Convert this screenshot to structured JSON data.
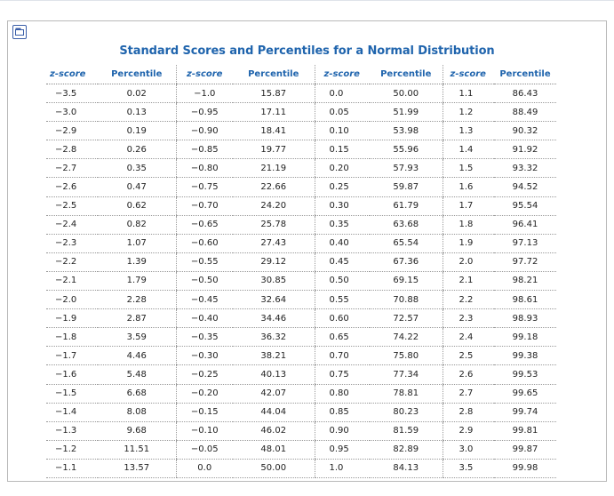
{
  "title": "Standard Scores and Percentiles for a Normal Distribution",
  "expand_icon": "expand-icon",
  "colors": {
    "heading": "#1f64ad",
    "text": "#222222",
    "border": "#b9b9b9"
  },
  "columns": [
    {
      "label": "z-score"
    },
    {
      "label": "Percentile"
    },
    {
      "label": "z-score"
    },
    {
      "label": "Percentile"
    },
    {
      "label": "z-score"
    },
    {
      "label": "Percentile"
    },
    {
      "label": "z-score"
    },
    {
      "label": "Percentile"
    }
  ],
  "rows": [
    [
      "−3.5",
      "0.02",
      "−1.0",
      "15.87",
      "0.0",
      "50.00",
      "1.1",
      "86.43"
    ],
    [
      "−3.0",
      "0.13",
      "−0.95",
      "17.11",
      "0.05",
      "51.99",
      "1.2",
      "88.49"
    ],
    [
      "−2.9",
      "0.19",
      "−0.90",
      "18.41",
      "0.10",
      "53.98",
      "1.3",
      "90.32"
    ],
    [
      "−2.8",
      "0.26",
      "−0.85",
      "19.77",
      "0.15",
      "55.96",
      "1.4",
      "91.92"
    ],
    [
      "−2.7",
      "0.35",
      "−0.80",
      "21.19",
      "0.20",
      "57.93",
      "1.5",
      "93.32"
    ],
    [
      "−2.6",
      "0.47",
      "−0.75",
      "22.66",
      "0.25",
      "59.87",
      "1.6",
      "94.52"
    ],
    [
      "−2.5",
      "0.62",
      "−0.70",
      "24.20",
      "0.30",
      "61.79",
      "1.7",
      "95.54"
    ],
    [
      "−2.4",
      "0.82",
      "−0.65",
      "25.78",
      "0.35",
      "63.68",
      "1.8",
      "96.41"
    ],
    [
      "−2.3",
      "1.07",
      "−0.60",
      "27.43",
      "0.40",
      "65.54",
      "1.9",
      "97.13"
    ],
    [
      "−2.2",
      "1.39",
      "−0.55",
      "29.12",
      "0.45",
      "67.36",
      "2.0",
      "97.72"
    ],
    [
      "−2.1",
      "1.79",
      "−0.50",
      "30.85",
      "0.50",
      "69.15",
      "2.1",
      "98.21"
    ],
    [
      "−2.0",
      "2.28",
      "−0.45",
      "32.64",
      "0.55",
      "70.88",
      "2.2",
      "98.61"
    ],
    [
      "−1.9",
      "2.87",
      "−0.40",
      "34.46",
      "0.60",
      "72.57",
      "2.3",
      "98.93"
    ],
    [
      "−1.8",
      "3.59",
      "−0.35",
      "36.32",
      "0.65",
      "74.22",
      "2.4",
      "99.18"
    ],
    [
      "−1.7",
      "4.46",
      "−0.30",
      "38.21",
      "0.70",
      "75.80",
      "2.5",
      "99.38"
    ],
    [
      "−1.6",
      "5.48",
      "−0.25",
      "40.13",
      "0.75",
      "77.34",
      "2.6",
      "99.53"
    ],
    [
      "−1.5",
      "6.68",
      "−0.20",
      "42.07",
      "0.80",
      "78.81",
      "2.7",
      "99.65"
    ],
    [
      "−1.4",
      "8.08",
      "−0.15",
      "44.04",
      "0.85",
      "80.23",
      "2.8",
      "99.74"
    ],
    [
      "−1.3",
      "9.68",
      "−0.10",
      "46.02",
      "0.90",
      "81.59",
      "2.9",
      "99.81"
    ],
    [
      "−1.2",
      "11.51",
      "−0.05",
      "48.01",
      "0.95",
      "82.89",
      "3.0",
      "99.87"
    ],
    [
      "−1.1",
      "13.57",
      "0.0",
      "50.00",
      "1.0",
      "84.13",
      "3.5",
      "99.98"
    ]
  ]
}
